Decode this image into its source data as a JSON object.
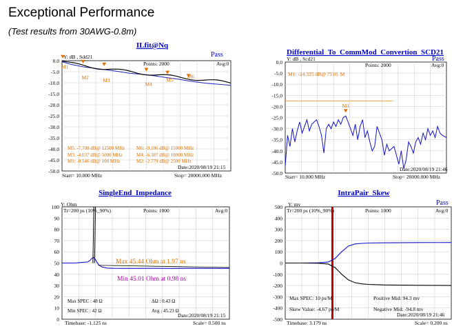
{
  "page": {
    "title": "Exceptional Performance",
    "subtitle": "(Test results from 30AWG-0.8m)"
  },
  "chart_data": [
    {
      "type": "line",
      "title": "ILfit@Nq",
      "ylabel_box": "Y: dB , Sdd21",
      "status": "Pass",
      "points": "Points: 2000",
      "avg": "Avg:0",
      "ylim": [
        -50,
        0
      ],
      "yticks": [
        "0.0",
        "-5.0",
        "-10.0",
        "-15.0",
        "-20.0",
        "-25.0",
        "-30.0",
        "-35.0",
        "-40.0",
        "-45.0",
        "-50.0"
      ],
      "xlim": [
        10,
        20000
      ],
      "start": "Start= 10.000 MHz",
      "stop": "Stop= 20000.000 MHz",
      "date": "Date:2020/08/19 21:15",
      "markers": [
        "M1",
        "M2",
        "M3",
        "M4",
        "M5",
        "M6"
      ],
      "marker_readouts": [
        "M5: -7.708 dB@ 12500 MHz",
        "M3: -4.037 dB@ 5000 MHz",
        "M1: -0.546 dB@ 100 MHz",
        "M6: -9.186 dB@ 15000 MHz",
        "M4: -6.387 dB@ 10000 MHz",
        "M2: -2.779 dB@ 2500 MHz"
      ],
      "series": [
        {
          "values_x": [
            10,
            100,
            1000,
            2500,
            4000,
            5000,
            7000,
            8000,
            10000,
            12500,
            14000,
            15000,
            17000,
            20000
          ],
          "values_y": [
            0,
            -0.55,
            -1.6,
            -2.78,
            -3.5,
            -4.04,
            -5.1,
            -5.7,
            -6.39,
            -7.71,
            -8.5,
            -9.19,
            -10.2,
            -11.2
          ]
        }
      ]
    },
    {
      "type": "line",
      "title": "Differential_To_CommMod_Convertion_SCD21",
      "ylabel_box": "Y: dB , Scd21",
      "status": "Pass",
      "points": "Points: 2000",
      "avg": "Avg:0",
      "ylim": [
        -50,
        0
      ],
      "yticks": [
        "0.0",
        "-5.0",
        "-10.0",
        "-15.0",
        "-20.0",
        "-25.0",
        "-30.0",
        "-35.0",
        "-40.0",
        "-45.0",
        "-50.0"
      ],
      "xlim": [
        10,
        20000
      ],
      "start": "Start= 10.000 MHz",
      "stop": "Stop= 20000.000 MHz",
      "date": "Date:2020/08/19 21:46",
      "markers": [
        "M1"
      ],
      "marker_readouts": [
        "M1: -24.325 dB@ 7510. M"
      ],
      "spec_limit": -17.5,
      "series": [
        {
          "values_x": [
            10,
            300,
            600,
            900,
            1200,
            1500,
            1800,
            2100,
            2400,
            2700,
            3000,
            3300,
            3600,
            3900,
            4200,
            4500,
            4800,
            5100,
            5400,
            5700,
            6000,
            6300,
            6600,
            6900,
            7200,
            7510,
            7800,
            8100,
            8400,
            8700,
            9000,
            9300,
            9600,
            9900,
            10200,
            10500,
            10800,
            11100,
            11400,
            11700,
            12000,
            12300,
            12600,
            12900,
            13200,
            13500,
            13800,
            14100,
            14400,
            14700,
            15000,
            15300,
            15600,
            15900,
            16200,
            16500,
            16800,
            17100,
            17400,
            17700,
            18000,
            18300,
            18600,
            18900,
            19200,
            19500,
            20000
          ],
          "values_y": [
            -47,
            -33,
            -38,
            -30,
            -36,
            -31,
            -27,
            -32,
            -29,
            -26,
            -31,
            -28,
            -27,
            -26,
            -29,
            -33,
            -41,
            -30,
            -28,
            -30,
            -27,
            -29,
            -26,
            -28,
            -25,
            -24.3,
            -27,
            -30,
            -33,
            -28,
            -35,
            -29,
            -26,
            -34,
            -31,
            -36,
            -40,
            -38,
            -29,
            -32,
            -35,
            -42,
            -37,
            -40,
            -39,
            -38,
            -42,
            -46,
            -40,
            -48,
            -44,
            -36,
            -38,
            -41,
            -36,
            -34,
            -37,
            -32,
            -35,
            -30,
            -33,
            -31,
            -34,
            -29,
            -32,
            -33,
            -34
          ]
        }
      ]
    },
    {
      "type": "line",
      "title": "SingleEnd_Impedance",
      "ylabel_box": "Y: Ohm",
      "tr": "Tr=200  ps (10%_90%)",
      "points": "Points: 1000",
      "avg": "Avg:0",
      "ylim": [
        0,
        100
      ],
      "yticks": [
        "100",
        "90",
        "80",
        "70",
        "60",
        "50",
        "40",
        "30",
        "20",
        "10",
        "0"
      ],
      "max_label": "Max  45.44  Ohm at 1.97  ns",
      "min_label": "Min  45.01  Ohm at 0.98  ns",
      "max_spec": "Max SPEC :  48 Ω",
      "min_spec": "Min SPEC :  42 Ω",
      "delta": "ΔΩ : 0.43 Ω",
      "avg_val": "Avg :  45.23 Ω",
      "date": "Date:2020/08/19 21:15",
      "timebase": "Timebase:  -1.125  ns",
      "scale": "Scale=     0.500 ns",
      "series": [
        {
          "name": "measured",
          "values_x": [
            0,
            1,
            2,
            3,
            4,
            4.3,
            4.6,
            4.9,
            5.2,
            5.5,
            5.8,
            6.2,
            6.6,
            7,
            8,
            10,
            12,
            14,
            16,
            18,
            20,
            22,
            24,
            26
          ],
          "values_y": [
            50,
            50,
            50,
            50.5,
            51,
            52,
            54,
            55,
            53,
            50,
            48,
            46.5,
            46,
            45.5,
            45.3,
            45.2,
            45.2,
            45.3,
            45.2,
            45.2,
            45.3,
            45.2,
            45.2,
            45.3
          ]
        }
      ]
    },
    {
      "type": "line",
      "title": "IntraPair_Skew",
      "ylabel_box": "Y: mv",
      "tr": "Tr=200  ps (10%_90%)",
      "status": "Pass",
      "points": "Points: 1000",
      "avg": "Avg:0",
      "ylim": [
        -500,
        500
      ],
      "yticks": [
        "500",
        "400",
        "300",
        "200",
        "100",
        "0",
        "-100",
        "-200",
        "-300",
        "-400",
        "-500"
      ],
      "max_spec": "Max SPEC: 10 ps/M",
      "skew": "Skew Value: -4.67  ps/M",
      "pos_mid": "Positive Mid: 94.3 mv",
      "neg_mid": "Negative Mid: -94.8 mv",
      "date": "Date:2020/08/19 21:46",
      "timebase": "Timebase: 3.179  ns",
      "scale": "Scale=     0.200 ns",
      "series": [
        {
          "name": "positive",
          "values_x": [
            0,
            10,
            20,
            26,
            30,
            34,
            38,
            42,
            46,
            50,
            60,
            80,
            100
          ],
          "values_y": [
            0,
            0,
            2,
            10,
            40,
            100,
            150,
            170,
            175,
            178,
            180,
            182,
            183
          ]
        },
        {
          "name": "negative",
          "values_x": [
            0,
            10,
            20,
            26,
            30,
            34,
            38,
            42,
            46,
            50,
            60,
            80,
            100
          ],
          "values_y": [
            0,
            0,
            -2,
            -10,
            -40,
            -100,
            -150,
            -175,
            -185,
            -190,
            -195,
            -198,
            -200
          ]
        }
      ]
    }
  ]
}
